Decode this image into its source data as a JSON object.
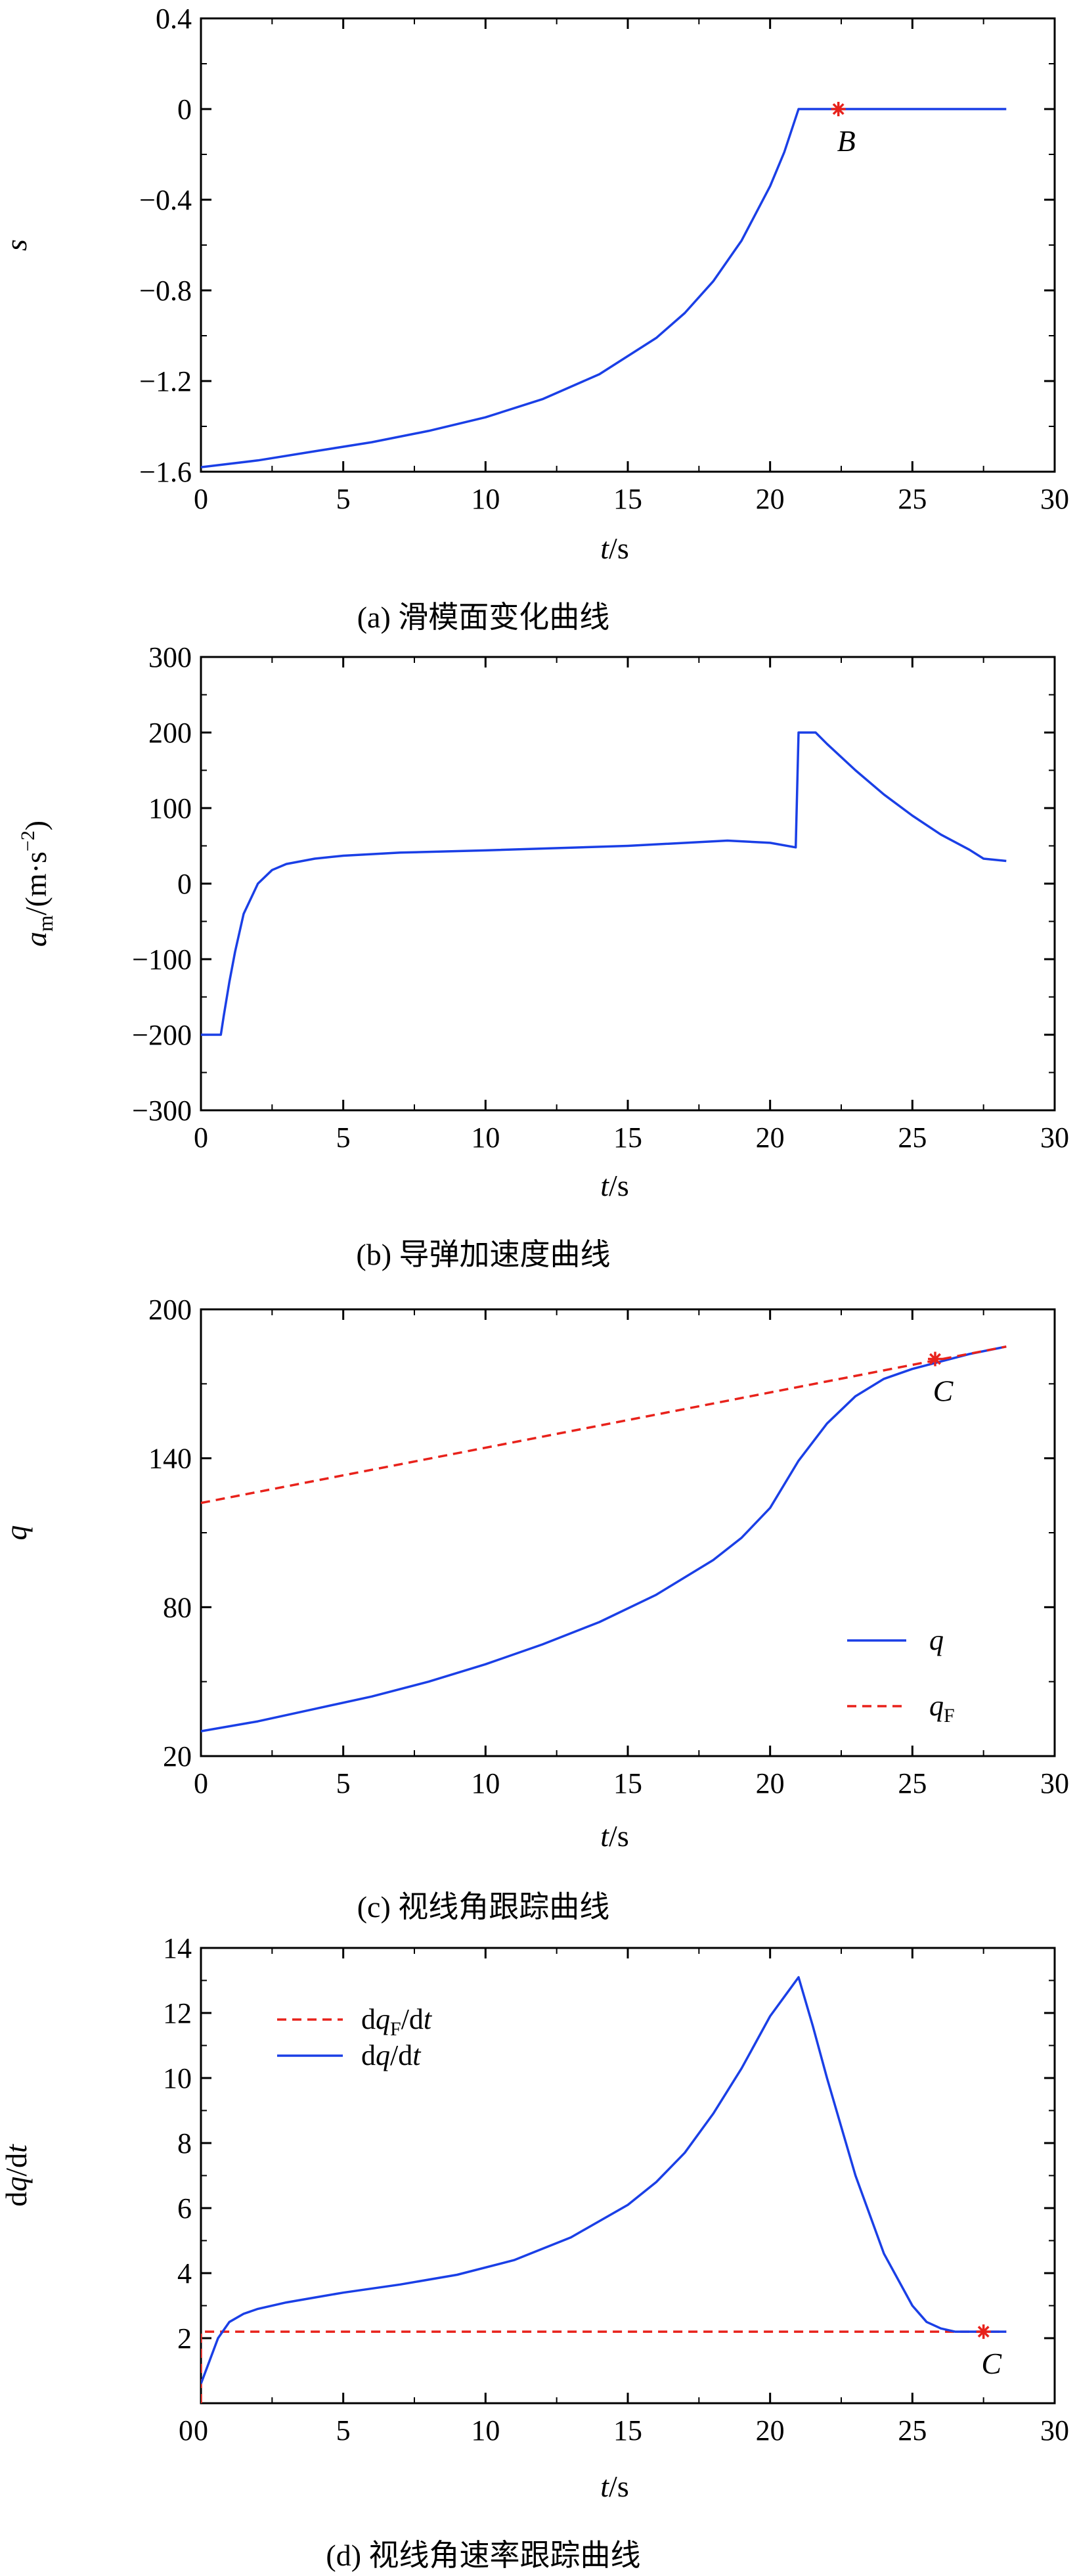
{
  "colors": {
    "blue": "#1a3fe6",
    "red": "#e8221b",
    "axis": "#000000"
  },
  "chart_data": [
    {
      "type": "line",
      "caption": "(a) 滑模面变化曲线",
      "xlabel_italic": "t",
      "xlabel_unit": "/s",
      "ylabel": "s",
      "xlim": [
        0,
        30
      ],
      "ylim": [
        -1.6,
        0.4
      ],
      "xticks": [
        0,
        5,
        10,
        15,
        20,
        25,
        30
      ],
      "yticks": [
        -1.6,
        -1.2,
        -0.8,
        -0.4,
        0,
        0.4
      ],
      "ytick_labels": [
        "−1.6",
        "−1.2",
        "−0.8",
        "−0.4",
        "0",
        "0.4"
      ],
      "series": [
        {
          "style": "solid",
          "color": "blue",
          "x": [
            0,
            2,
            4,
            6,
            8,
            10,
            12,
            14,
            16,
            17,
            18,
            19,
            20,
            20.5,
            21,
            28.3
          ],
          "y": [
            -1.58,
            -1.55,
            -1.51,
            -1.47,
            -1.42,
            -1.36,
            -1.28,
            -1.17,
            -1.01,
            -0.9,
            -0.76,
            -0.58,
            -0.34,
            -0.19,
            0,
            0
          ]
        }
      ],
      "markers": [
        {
          "x": 22.4,
          "y": 0,
          "label": "B",
          "color": "red"
        }
      ]
    },
    {
      "type": "line",
      "caption": "(b) 导弹加速度曲线",
      "xlabel_italic": "t",
      "xlabel_unit": "/s",
      "ylabel": "a_m/(m·s⁻²)",
      "xlim": [
        0,
        30
      ],
      "ylim": [
        -300,
        300
      ],
      "xticks": [
        0,
        5,
        10,
        15,
        20,
        25,
        30
      ],
      "yticks": [
        -300,
        -200,
        -100,
        0,
        100,
        200,
        300
      ],
      "ytick_labels": [
        "−300",
        "−200",
        "−100",
        "0",
        "100",
        "200",
        "300"
      ],
      "series": [
        {
          "style": "solid",
          "color": "blue",
          "x": [
            0,
            0.7,
            0.8,
            1.0,
            1.2,
            1.5,
            2.0,
            2.5,
            3,
            4,
            5,
            7,
            10,
            15,
            18.5,
            20,
            20.9,
            21,
            21.05,
            21.6,
            22,
            23,
            24,
            25,
            26,
            27,
            27.5,
            28.3
          ],
          "y": [
            -200,
            -200,
            -175,
            -130,
            -90,
            -40,
            0,
            18,
            26,
            33,
            37,
            41,
            44,
            50,
            57,
            54,
            48,
            200,
            200,
            200,
            185,
            150,
            118,
            90,
            65,
            45,
            33,
            30
          ]
        }
      ],
      "markers": []
    },
    {
      "type": "line",
      "caption": "(c) 视线角跟踪曲线",
      "xlabel_italic": "t",
      "xlabel_unit": "/s",
      "ylabel": "q",
      "xlim": [
        0,
        30
      ],
      "ylim": [
        20,
        200
      ],
      "xticks": [
        0,
        5,
        10,
        15,
        20,
        25,
        30
      ],
      "yticks": [
        20,
        80,
        140,
        200
      ],
      "ytick_labels": [
        "20",
        "80",
        "140",
        "200"
      ],
      "series": [
        {
          "name": "q",
          "style": "solid",
          "color": "blue",
          "x": [
            0,
            2,
            4,
            6,
            8,
            10,
            12,
            14,
            16,
            18,
            19,
            20,
            21,
            22,
            23,
            24,
            25,
            26,
            27,
            28.3
          ],
          "y": [
            30,
            34,
            39,
            44,
            50,
            57,
            65,
            74,
            85,
            99,
            108,
            120,
            139,
            154,
            165,
            172,
            176,
            179,
            182,
            185
          ]
        },
        {
          "name": "qF",
          "style": "dashed",
          "color": "red",
          "x": [
            0,
            28.3
          ],
          "y": [
            122,
            185
          ]
        }
      ],
      "legend": {
        "position": "bottom-right"
      },
      "markers": [
        {
          "x": 25.8,
          "y": 180,
          "label": "C",
          "color": "red"
        }
      ]
    },
    {
      "type": "line",
      "caption": "(d) 视线角速率跟踪曲线",
      "xlabel_italic": "t",
      "xlabel_unit": "/s",
      "ylabel": "dq/dt",
      "xlim": [
        0,
        30
      ],
      "ylim": [
        0,
        14
      ],
      "xticks": [
        0,
        5,
        10,
        15,
        20,
        25,
        30
      ],
      "yticks": [
        2,
        4,
        6,
        8,
        10,
        12,
        14
      ],
      "ytick_labels": [
        "2",
        "4",
        "6",
        "8",
        "10",
        "12",
        "14"
      ],
      "x0_label": "0",
      "series": [
        {
          "name": "dqF/dt",
          "style": "dashed",
          "color": "red",
          "x": [
            0,
            0,
            28.3
          ],
          "y": [
            0,
            2.2,
            2.2
          ]
        },
        {
          "name": "dq/dt",
          "style": "solid",
          "color": "blue",
          "x": [
            0,
            0.3,
            0.6,
            1,
            1.5,
            2,
            3,
            4,
            5,
            7,
            9,
            11,
            13,
            15,
            16,
            17,
            18,
            19,
            20,
            20.5,
            21,
            21.5,
            22,
            23,
            24,
            25,
            25.5,
            26,
            26.5,
            27,
            28.3
          ],
          "y": [
            0.6,
            1.3,
            2.0,
            2.5,
            2.75,
            2.9,
            3.1,
            3.25,
            3.4,
            3.65,
            3.95,
            4.4,
            5.1,
            6.1,
            6.8,
            7.7,
            8.9,
            10.3,
            11.9,
            12.5,
            13.1,
            11.6,
            10.0,
            7.0,
            4.6,
            3.0,
            2.5,
            2.3,
            2.2,
            2.2,
            2.2
          ]
        }
      ],
      "legend": {
        "position": "top-left"
      },
      "markers": [
        {
          "x": 27.5,
          "y": 2.2,
          "label": "C",
          "color": "red"
        }
      ]
    }
  ]
}
